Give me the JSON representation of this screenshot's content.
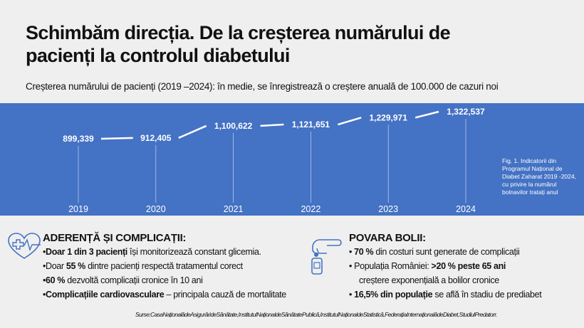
{
  "title": "Schimbăm direcția. De la creșterea numărului de pacienți la controlul diabetului",
  "subtitle": "Creșterea numărului de pacienți (2019 –2024): în medie, se înregistrează o creștere anuală de 100.000 de cazuri noi",
  "chart_data": {
    "type": "line",
    "categories": [
      "2019",
      "2020",
      "2021",
      "2022",
      "2023",
      "2024"
    ],
    "values": [
      899339,
      912405,
      1100622,
      1121651,
      1229971,
      1322537
    ],
    "labels": [
      "899,339",
      "912,405",
      "1,100,622",
      "1,121,651",
      "1,229,971",
      "1,322,537"
    ],
    "caption": "Fig. 1. Indicatorii din Programul Național de Diabet Zaharat 2019 -2024, cu privire la numărul bolnavilor tratați anul",
    "background": "#4472c4",
    "line_color": "#ffffff"
  },
  "left": {
    "icon": "heart-pulse-icon",
    "heading": "ADERENȚĂ ȘI COMPLICAȚII:",
    "items": [
      {
        "bold": "Doar 1 din 3 pacienți",
        "text": " își monitorizează constant glicemia.",
        "pre": ""
      },
      {
        "pre": "Doar ",
        "bold": "55 %",
        "text": " dintre pacienți respectă tratamentul corect"
      },
      {
        "pre": "",
        "bold": "60 %",
        "text": " dezvoltă complicații cronice în 10 ani"
      },
      {
        "pre": "",
        "bold": "Complicațiile cardiovasculare",
        "text": " – principala cauză de mortalitate"
      }
    ]
  },
  "right": {
    "icon": "glucose-meter-icon",
    "heading": "POVARA BOLII:",
    "items": [
      {
        "pre": "",
        "bold": "70 %",
        "text": " din costuri sunt generate de complicații"
      },
      {
        "pre": "Populația României: ",
        "bold": ">20 % peste 65 ani",
        "text": ""
      },
      {
        "pre": "creștere exponențială a bolilor cronice",
        "bold": "",
        "text": ""
      },
      {
        "pre": "",
        "bold": "16,5% din populație",
        "text": " se află în stadiu de prediabet"
      }
    ]
  },
  "sources": "Surse:CasaNaționalădeAsigurărideSănătate,InstitutulNaționaldeSănătatePublică,InstitutulNaționaldeStatistică,FederațiaInternaționalădeDiabet,StudiulPredatorr."
}
